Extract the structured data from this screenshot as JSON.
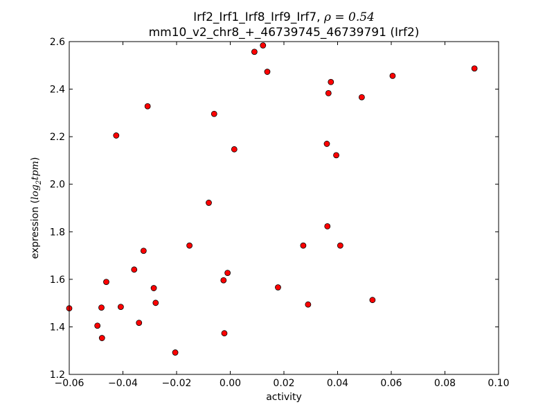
{
  "chart_data": {
    "type": "scatter",
    "title_line1": "Irf2_Irf1_Irf8_Irf9_Irf7, ",
    "title_rho": "ρ",
    "title_rho_value": " = 0.54",
    "title_line2": "mm10_v2_chr8_+_46739745_46739791 (Irf2)",
    "xlabel": "activity",
    "ylabel_text": "expression (",
    "ylabel_math_log": "log",
    "ylabel_math_sub": "2",
    "ylabel_math_tpm": "tpm",
    "ylabel_close": ")",
    "xlim": [
      -0.06,
      0.1
    ],
    "ylim": [
      1.2,
      2.6
    ],
    "xticks": [
      -0.06,
      -0.04,
      -0.02,
      0.0,
      0.02,
      0.04,
      0.06,
      0.08,
      0.1
    ],
    "xtick_labels": [
      "−0.06",
      "−0.04",
      "−0.02",
      "0.00",
      "0.02",
      "0.04",
      "0.06",
      "0.08",
      "0.10"
    ],
    "yticks": [
      1.2,
      1.4,
      1.6,
      1.8,
      2.0,
      2.2,
      2.4,
      2.6
    ],
    "ytick_labels": [
      "1.2",
      "1.4",
      "1.6",
      "1.8",
      "2.0",
      "2.2",
      "2.4",
      "2.6"
    ],
    "grid": false,
    "marker_color": "#ff0000",
    "marker_edge": "#000000",
    "points": [
      {
        "x": -0.06,
        "y": 1.478
      },
      {
        "x": -0.0495,
        "y": 1.405
      },
      {
        "x": -0.048,
        "y": 1.481
      },
      {
        "x": -0.0478,
        "y": 1.353
      },
      {
        "x": -0.0462,
        "y": 1.589
      },
      {
        "x": -0.0425,
        "y": 2.205
      },
      {
        "x": -0.0408,
        "y": 1.484
      },
      {
        "x": -0.0358,
        "y": 1.641
      },
      {
        "x": -0.034,
        "y": 1.417
      },
      {
        "x": -0.0323,
        "y": 1.72
      },
      {
        "x": -0.0308,
        "y": 2.328
      },
      {
        "x": -0.0285,
        "y": 1.563
      },
      {
        "x": -0.0278,
        "y": 1.501
      },
      {
        "x": -0.0205,
        "y": 1.292
      },
      {
        "x": -0.0152,
        "y": 1.742
      },
      {
        "x": -0.008,
        "y": 1.922
      },
      {
        "x": -0.006,
        "y": 2.296
      },
      {
        "x": -0.0025,
        "y": 1.596
      },
      {
        "x": -0.0022,
        "y": 1.373
      },
      {
        "x": -0.001,
        "y": 1.627
      },
      {
        "x": 0.0015,
        "y": 2.147
      },
      {
        "x": 0.009,
        "y": 2.557
      },
      {
        "x": 0.0122,
        "y": 2.584
      },
      {
        "x": 0.0138,
        "y": 2.473
      },
      {
        "x": 0.0178,
        "y": 1.566
      },
      {
        "x": 0.0272,
        "y": 1.742
      },
      {
        "x": 0.029,
        "y": 1.494
      },
      {
        "x": 0.036,
        "y": 2.17
      },
      {
        "x": 0.0362,
        "y": 1.823
      },
      {
        "x": 0.0366,
        "y": 2.383
      },
      {
        "x": 0.0375,
        "y": 2.43
      },
      {
        "x": 0.0395,
        "y": 2.122
      },
      {
        "x": 0.041,
        "y": 1.742
      },
      {
        "x": 0.049,
        "y": 2.366
      },
      {
        "x": 0.053,
        "y": 1.513
      },
      {
        "x": 0.0605,
        "y": 2.456
      },
      {
        "x": 0.091,
        "y": 2.487
      }
    ]
  }
}
